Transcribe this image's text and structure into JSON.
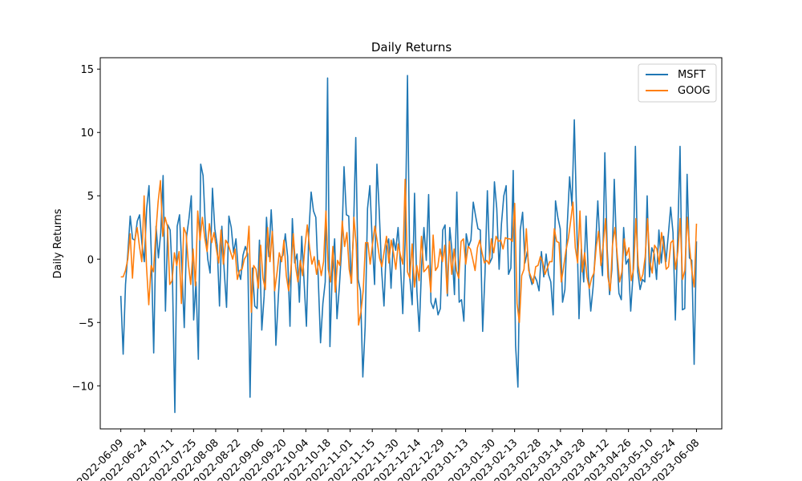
{
  "chart_data": {
    "type": "line",
    "title": "Daily Returns",
    "xlabel": "",
    "ylabel": "Daily Returns",
    "ylim": [
      -13.4,
      15.9
    ],
    "yticks": [
      -10,
      -5,
      0,
      5,
      10,
      15
    ],
    "ytick_labels": [
      "−10",
      "−5",
      "0",
      "5",
      "10",
      "15"
    ],
    "xlim": [
      "2022-05-27",
      "2023-06-24"
    ],
    "xtick_labels": [
      "2022-06-09",
      "2022-06-24",
      "2022-07-11",
      "2022-07-25",
      "2022-08-08",
      "2022-08-22",
      "2022-09-06",
      "2022-09-20",
      "2022-10-04",
      "2022-10-18",
      "2022-11-01",
      "2022-11-15",
      "2022-11-30",
      "2022-12-14",
      "2022-12-29",
      "2023-01-13",
      "2023-01-30",
      "2023-02-13",
      "2023-02-28",
      "2023-03-14",
      "2023-03-28",
      "2023-04-12",
      "2023-04-26",
      "2023-05-10",
      "2023-05-24",
      "2023-06-08"
    ],
    "start_date": "2022-06-09",
    "end_date": "2023-06-08",
    "legend_position": "top-right",
    "grid": false,
    "series": [
      {
        "name": "MSFT",
        "color": "#1f77b4",
        "values": [
          -2.9,
          -7.5,
          -2.0,
          0.5,
          3.4,
          1.6,
          1.5,
          3.0,
          3.5,
          1.2,
          -0.2,
          4.0,
          5.8,
          0.3,
          -7.4,
          2.6,
          0.1,
          2.1,
          6.6,
          -4.1,
          2.7,
          2.3,
          -1.6,
          -12.1,
          2.6,
          3.5,
          -0.8,
          -5.4,
          1.8,
          3.2,
          5.0,
          -4.8,
          -1.8,
          -7.9,
          7.5,
          6.6,
          2.5,
          0.0,
          -1.1,
          5.6,
          2.4,
          1.1,
          -3.7,
          2.6,
          -0.9,
          -3.8,
          3.4,
          2.5,
          0.5,
          1.6,
          -0.9,
          -1.6,
          0.3,
          1.0,
          0.4,
          -10.9,
          -0.7,
          -3.7,
          -3.9,
          1.5,
          -5.6,
          -2.9,
          3.3,
          0.2,
          3.9,
          0.5,
          -6.8,
          -3.1,
          0.1,
          0.3,
          2.0,
          0.2,
          -5.3,
          3.2,
          -0.3,
          0.4,
          -3.4,
          1.8,
          -1.8,
          -5.3,
          2.0,
          5.3,
          3.8,
          3.3,
          -1.4,
          -6.6,
          -3.5,
          -1.8,
          14.3,
          -6.9,
          -1.0,
          1.6,
          -4.7,
          -2.2,
          0.9,
          7.3,
          3.5,
          3.4,
          -1.9,
          2.0,
          9.6,
          -1.6,
          -2.5,
          -9.3,
          -5.3,
          4.0,
          5.8,
          1.4,
          -2.0,
          7.5,
          3.7,
          -0.9,
          -3.7,
          1.0,
          1.6,
          -2.3,
          1.6,
          0.7,
          2.5,
          -0.4,
          -4.3,
          1.4,
          14.5,
          -1.5,
          -3.6,
          5.2,
          -2.5,
          -5.7,
          -0.6,
          2.5,
          -0.1,
          5.1,
          -3.4,
          -3.9,
          -3.1,
          -4.4,
          -3.9,
          2.3,
          2.7,
          -2.9,
          2.5,
          0.5,
          -2.8,
          5.3,
          -3.4,
          -3.2,
          -4.9,
          2.0,
          1.0,
          1.5,
          4.5,
          3.4,
          2.4,
          2.3,
          -5.7,
          -1.1,
          5.4,
          -0.3,
          0.1,
          6.1,
          4.0,
          -0.8,
          2.8,
          5.0,
          5.8,
          -1.2,
          -0.7,
          7.0,
          -6.8,
          -10.1,
          2.3,
          3.7,
          -0.3,
          0.6,
          -1.3,
          -2.0,
          -1.3,
          -1.7,
          -2.5,
          0.6,
          -1.4,
          0.4,
          -1.2,
          -1.8,
          -4.4,
          4.6,
          3.3,
          2.4,
          -3.4,
          -2.4,
          2.7,
          6.5,
          4.2,
          11.0,
          3.2,
          -4.7,
          0.8,
          -1.8,
          3.4,
          -1.4,
          -4.1,
          -2.2,
          0.8,
          4.6,
          0.8,
          -1.3,
          8.4,
          0.8,
          -2.8,
          -0.8,
          6.3,
          0.7,
          -2.7,
          -3.2,
          2.5,
          -0.4,
          0.0,
          -4.1,
          -1.2,
          8.9,
          -1.0,
          -2.4,
          -1.6,
          -1.8,
          5.0,
          -1.4,
          0.9,
          0.4,
          -1.6,
          2.3,
          -0.3,
          1.8,
          -0.2,
          1.9,
          4.1,
          2.1,
          -4.8,
          1.7,
          8.9,
          -4.0,
          -3.9,
          6.7,
          0.1,
          -0.1,
          -8.3,
          1.4
        ]
      },
      {
        "name": "GOOG",
        "color": "#ff7f0e",
        "values": [
          -1.4,
          -1.4,
          -0.9,
          0.0,
          2.0,
          -1.5,
          1.5,
          2.5,
          1.0,
          -0.2,
          5.0,
          -0.5,
          -3.6,
          -0.5,
          -1.0,
          2.0,
          4.5,
          6.2,
          1.8,
          3.3,
          2.6,
          -2.0,
          -1.7,
          0.5,
          -0.5,
          0.6,
          -3.5,
          2.5,
          2.0,
          -0.4,
          -2.0,
          0.8,
          -2.1,
          3.8,
          1.5,
          3.3,
          1.7,
          0.6,
          2.8,
          1.3,
          2.1,
          0.8,
          -0.3,
          2.3,
          -0.4,
          1.5,
          1.2,
          0.6,
          0.0,
          0.8,
          -1.6,
          -0.9,
          -0.8,
          0.0,
          0.3,
          2.6,
          -4.2,
          -0.5,
          -0.8,
          -2.3,
          1.1,
          -1.5,
          -2.4,
          2.5,
          -0.2,
          2.2,
          -2.5,
          -1.1,
          0.5,
          -0.2,
          1.5,
          -1.3,
          -2.5,
          -0.8,
          2.0,
          -0.6,
          -1.8,
          -0.1,
          -1.3,
          1.0,
          2.7,
          0.9,
          -0.4,
          0.2,
          -1.2,
          -0.1,
          -1.3,
          -0.2,
          3.8,
          -0.8,
          -1.8,
          1.0,
          -2.6,
          -0.1,
          -0.5,
          3.0,
          1.0,
          2.1,
          -0.8,
          -1.9,
          3.3,
          1.2,
          -5.2,
          -4.2,
          -2.5,
          1.3,
          1.3,
          -0.4,
          1.2,
          2.6,
          1.4,
          0.1,
          -0.6,
          0.6,
          1.8,
          -0.3,
          1.5,
          0.5,
          -0.8,
          1.2,
          0.3,
          -0.4,
          6.3,
          -1.0,
          -1.5,
          1.2,
          -2.2,
          -0.5,
          -1.7,
          1.8,
          -1.0,
          -0.8,
          -0.5,
          -2.6,
          1.9,
          -0.9,
          -0.6,
          0.8,
          -0.2,
          1.1,
          -2.7,
          1.4,
          -1.2,
          0.8,
          -0.9,
          -1.5,
          1.4,
          1.6,
          -0.4,
          1.0,
          0.8,
          0.0,
          -0.9,
          0.9,
          1.5,
          0.5,
          -0.3,
          -0.1,
          -0.4,
          1.6,
          0.5,
          1.8,
          1.4,
          1.5,
          0.8,
          1.7,
          1.6,
          1.6,
          1.4,
          4.4,
          -3.5,
          -5.0,
          -1.3,
          -0.8,
          2.4,
          -0.9,
          -1.4,
          -1.9,
          -0.6,
          -0.5,
          0.2,
          -0.2,
          -1.2,
          -0.7,
          -0.2,
          -0.2,
          2.4,
          1.4,
          1.3,
          -1.8,
          -0.6,
          0.7,
          1.6,
          3.0,
          4.5,
          0.9,
          -0.3,
          3.8,
          -1.0,
          0.5,
          -1.4,
          -2.3,
          -1.5,
          -1.1,
          1.0,
          2.2,
          -0.5,
          1.2,
          3.2,
          -1.4,
          -2.5,
          1.2,
          2.5,
          0.3,
          -1.8,
          -1.0,
          1.6,
          0.3,
          0.9,
          -1.7,
          -0.8,
          3.2,
          -0.5,
          -1.7,
          -1.2,
          0.2,
          3.2,
          -0.2,
          -1.1,
          1.1,
          0.8,
          -0.4,
          2.1,
          0.9,
          -0.8,
          -0.6,
          1.3,
          1.5,
          -0.8,
          0.6,
          3.2,
          -1.6,
          -0.9,
          3.3,
          1.0,
          -0.9,
          -2.2,
          2.8
        ]
      }
    ]
  }
}
